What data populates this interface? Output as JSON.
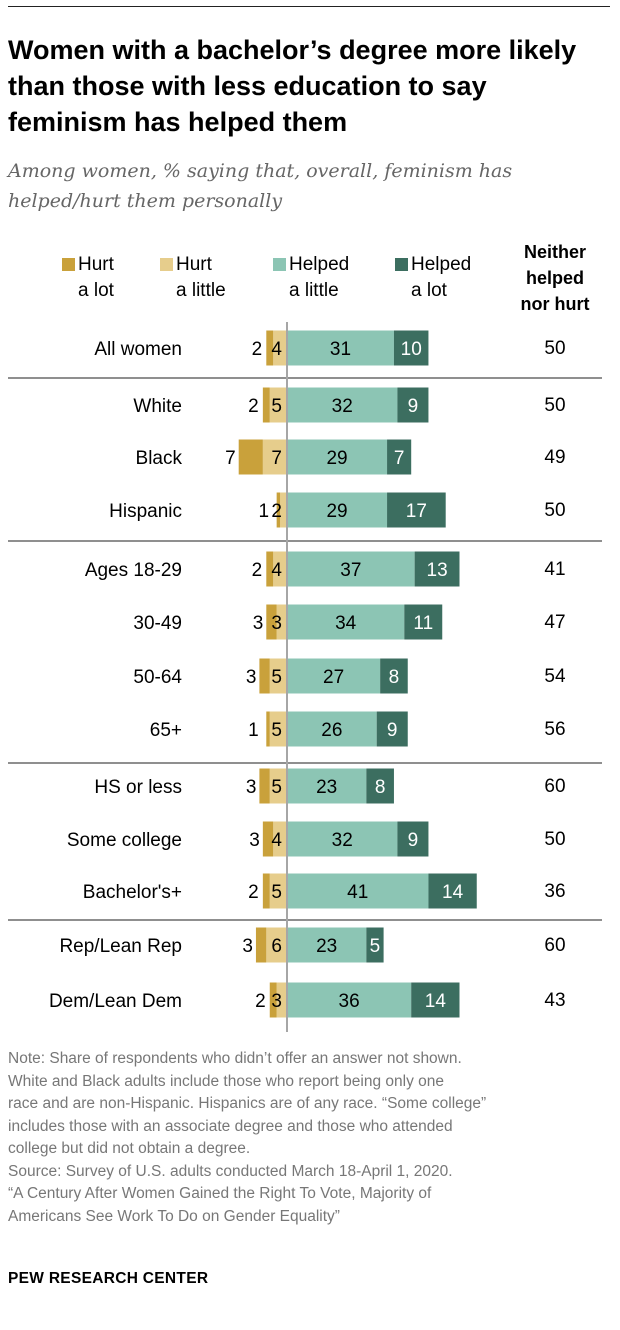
{
  "title": "Women with a bachelor’s degree more likely than those with less education to say feminism has helped them",
  "subtitle": "Among women, % saying that, overall, feminism has helped/hurt them personally",
  "colors": {
    "hurt_a_lot": "#C9A13B",
    "hurt_a_little": "#E6CD8C",
    "helped_a_little": "#8CC5B4",
    "helped_a_lot": "#3C6E60",
    "divider": "#8f8f8f",
    "center_line": "#a6a6a6"
  },
  "chart_data": {
    "type": "bar",
    "layout": "diverging-stacked-horizontal",
    "legend": {
      "items": [
        {
          "key": "hurt_a_lot",
          "line1": "Hurt",
          "line2": "a lot"
        },
        {
          "key": "hurt_a_little",
          "line1": "Hurt",
          "line2": "a little"
        },
        {
          "key": "helped_a_little",
          "line1": "Helped",
          "line2": "a little"
        },
        {
          "key": "helped_a_lot",
          "line1": "Helped",
          "line2": "a lot"
        }
      ],
      "neither_header": [
        "Neither",
        "helped",
        "nor hurt"
      ]
    },
    "series": [
      {
        "name": "Hurt a lot",
        "key": "hurt_a_lot"
      },
      {
        "name": "Hurt a little",
        "key": "hurt_a_little"
      },
      {
        "name": "Helped a little",
        "key": "helped_a_little"
      },
      {
        "name": "Helped a lot",
        "key": "helped_a_lot"
      }
    ],
    "groups": [
      [
        {
          "label": "All women",
          "hurt_a_lot": 2,
          "hurt_a_little": 4,
          "helped_a_little": 31,
          "helped_a_lot": 10,
          "neither": 50
        }
      ],
      [
        {
          "label": "White",
          "hurt_a_lot": 2,
          "hurt_a_little": 5,
          "helped_a_little": 32,
          "helped_a_lot": 9,
          "neither": 50
        },
        {
          "label": "Black",
          "hurt_a_lot": 7,
          "hurt_a_little": 7,
          "helped_a_little": 29,
          "helped_a_lot": 7,
          "neither": 49
        },
        {
          "label": "Hispanic",
          "hurt_a_lot": 1,
          "hurt_a_little": 2,
          "helped_a_little": 29,
          "helped_a_lot": 17,
          "neither": 50
        }
      ],
      [
        {
          "label": "Ages 18-29",
          "hurt_a_lot": 2,
          "hurt_a_little": 4,
          "helped_a_little": 37,
          "helped_a_lot": 13,
          "neither": 41
        },
        {
          "label": "30-49",
          "hurt_a_lot": 3,
          "hurt_a_little": 3,
          "helped_a_little": 34,
          "helped_a_lot": 11,
          "neither": 47
        },
        {
          "label": "50-64",
          "hurt_a_lot": 3,
          "hurt_a_little": 5,
          "helped_a_little": 27,
          "helped_a_lot": 8,
          "neither": 54
        },
        {
          "label": "65+",
          "hurt_a_lot": 1,
          "hurt_a_little": 5,
          "helped_a_little": 26,
          "helped_a_lot": 9,
          "neither": 56
        }
      ],
      [
        {
          "label": "HS or less",
          "hurt_a_lot": 3,
          "hurt_a_little": 5,
          "helped_a_little": 23,
          "helped_a_lot": 8,
          "neither": 60
        },
        {
          "label": "Some college",
          "hurt_a_lot": 3,
          "hurt_a_little": 4,
          "helped_a_little": 32,
          "helped_a_lot": 9,
          "neither": 50
        },
        {
          "label": "Bachelor's+",
          "hurt_a_lot": 2,
          "hurt_a_little": 5,
          "helped_a_little": 41,
          "helped_a_lot": 14,
          "neither": 36
        }
      ],
      [
        {
          "label": "Rep/Lean Rep",
          "hurt_a_lot": 3,
          "hurt_a_little": 6,
          "helped_a_little": 23,
          "helped_a_lot": 5,
          "neither": 60
        },
        {
          "label": "Dem/Lean Dem",
          "hurt_a_lot": 2,
          "hurt_a_little": 3,
          "helped_a_little": 36,
          "helped_a_lot": 14,
          "neither": 43
        }
      ]
    ],
    "unit": "%"
  },
  "notes": [
    "Note: Share of respondents who didn’t offer an answer not shown.",
    "White and Black adults include those who report being only one",
    "race and are non-Hispanic. Hispanics are of any race. “Some college”",
    "includes those with an associate degree and those who attended",
    "college but did not obtain a degree.",
    "Source: Survey of U.S. adults conducted March 18-April 1, 2020.",
    "“A Century After Women Gained the Right To Vote, Majority of",
    "Americans See Work To Do on Gender Equality”"
  ],
  "brand": "PEW RESEARCH CENTER"
}
